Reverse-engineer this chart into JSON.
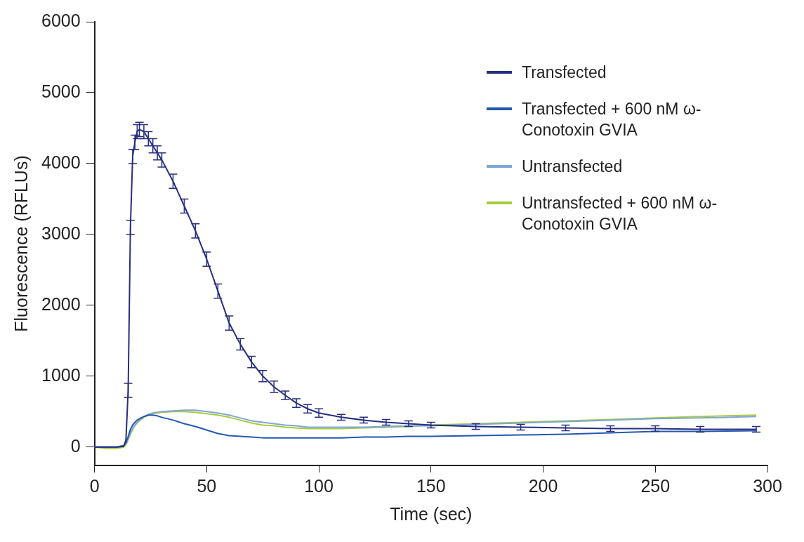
{
  "chart_data": {
    "type": "line",
    "xlabel": "Time (sec)",
    "ylabel": "Fluorescence (RFLUs)",
    "x": [
      0,
      5,
      10,
      13,
      14,
      15,
      16,
      17,
      18,
      19,
      20,
      22,
      24,
      26,
      28,
      30,
      35,
      40,
      45,
      50,
      55,
      60,
      65,
      70,
      75,
      80,
      85,
      90,
      95,
      100,
      110,
      120,
      130,
      140,
      150,
      170,
      190,
      210,
      230,
      250,
      270,
      295
    ],
    "series": [
      {
        "name": "Transfected",
        "color": "#262f7f",
        "values": [
          0,
          0,
          0,
          10,
          100,
          800,
          3100,
          4100,
          4300,
          4450,
          4480,
          4450,
          4350,
          4250,
          4150,
          4050,
          3750,
          3400,
          3050,
          2650,
          2200,
          1750,
          1450,
          1200,
          1000,
          850,
          730,
          620,
          540,
          480,
          420,
          380,
          350,
          330,
          310,
          290,
          280,
          270,
          260,
          260,
          250,
          250
        ],
        "errors": [
          null,
          null,
          null,
          null,
          null,
          100,
          100,
          100,
          100,
          100,
          100,
          100,
          100,
          100,
          100,
          100,
          100,
          100,
          100,
          100,
          100,
          100,
          80,
          80,
          80,
          80,
          60,
          60,
          60,
          60,
          40,
          40,
          40,
          40,
          40,
          40,
          40,
          40,
          40,
          40,
          40,
          40
        ]
      },
      {
        "name": "Transfected + 600 nM ω-Conotoxin GVIA",
        "color": "#2358b0",
        "values": [
          0,
          0,
          0,
          20,
          60,
          150,
          250,
          310,
          350,
          380,
          400,
          430,
          450,
          450,
          440,
          420,
          380,
          330,
          290,
          240,
          190,
          160,
          150,
          140,
          130,
          130,
          130,
          130,
          130,
          130,
          130,
          140,
          140,
          150,
          150,
          160,
          170,
          180,
          200,
          220,
          220,
          230
        ]
      },
      {
        "name": "Untransfected",
        "color": "#7fa6d8",
        "values": [
          0,
          0,
          0,
          20,
          50,
          120,
          200,
          260,
          310,
          350,
          380,
          430,
          460,
          480,
          490,
          500,
          510,
          520,
          520,
          500,
          480,
          450,
          410,
          370,
          350,
          330,
          310,
          300,
          280,
          280,
          280,
          280,
          290,
          300,
          300,
          320,
          340,
          360,
          380,
          400,
          410,
          430
        ]
      },
      {
        "name": "Untransfected + 600 nM ω-Conotoxin GVIA",
        "color": "#a7cc3a",
        "values": [
          0,
          -20,
          -20,
          0,
          30,
          100,
          180,
          250,
          300,
          340,
          370,
          420,
          450,
          470,
          480,
          490,
          500,
          500,
          490,
          470,
          450,
          420,
          380,
          340,
          310,
          300,
          280,
          270,
          260,
          260,
          260,
          270,
          280,
          290,
          310,
          330,
          350,
          370,
          390,
          410,
          430,
          450
        ]
      }
    ],
    "xlim": [
      0,
      300
    ],
    "xticks": [
      0,
      50,
      100,
      150,
      200,
      250,
      300
    ],
    "ylim": [
      -260,
      6000
    ],
    "yticks": [
      0,
      1000,
      2000,
      3000,
      4000,
      5000,
      6000
    ],
    "grid": false,
    "legend": "top right",
    "marker": "none",
    "line_style": "solid"
  }
}
